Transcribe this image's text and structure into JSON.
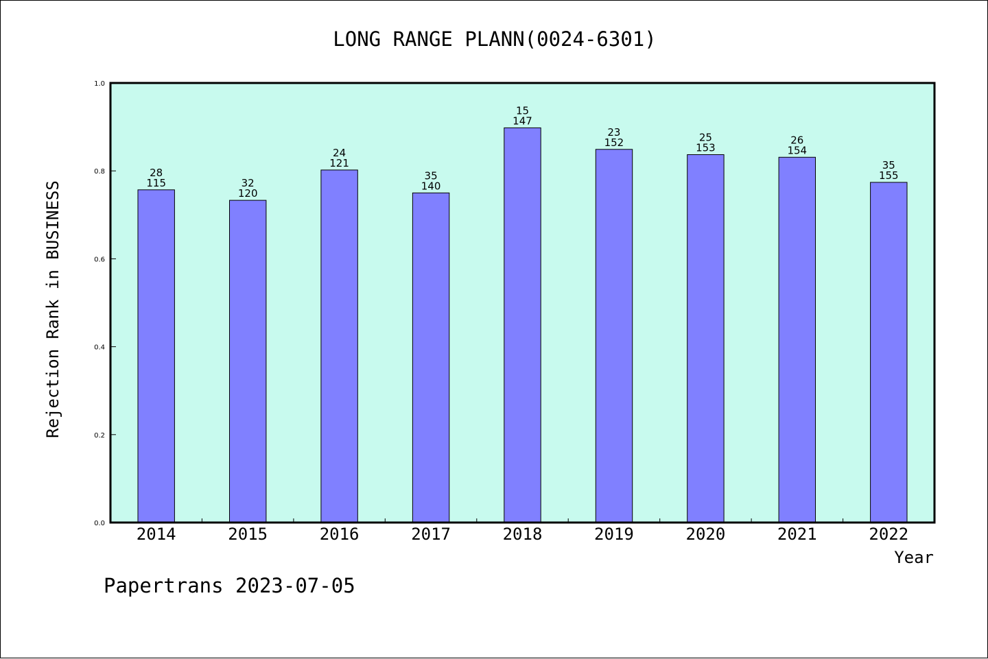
{
  "colors": {
    "plot_background": "#c8faee",
    "bar_fill": "#8080ff",
    "bar_stroke": "#000000",
    "axis": "#000000"
  },
  "footer": {
    "text": "Papertrans 2023-07-05"
  },
  "chart_data": {
    "type": "bar",
    "title": "LONG RANGE PLANN(0024-6301)",
    "xlabel": "Year",
    "ylabel": "Rejection Rank in BUSINESS",
    "ylim": [
      0.0,
      1.0
    ],
    "yticks": [
      "0.0",
      "0.2",
      "0.4",
      "0.6",
      "0.8",
      "1.0"
    ],
    "grid": false,
    "categories": [
      "2014",
      "2015",
      "2016",
      "2017",
      "2018",
      "2019",
      "2020",
      "2021",
      "2022"
    ],
    "values": [
      0.757,
      0.733,
      0.802,
      0.75,
      0.898,
      0.849,
      0.837,
      0.831,
      0.774
    ],
    "label_top": [
      "28",
      "32",
      "24",
      "35",
      "15",
      "23",
      "25",
      "26",
      "35"
    ],
    "label_bottom": [
      "115",
      "120",
      "121",
      "140",
      "147",
      "152",
      "153",
      "154",
      "155"
    ]
  }
}
